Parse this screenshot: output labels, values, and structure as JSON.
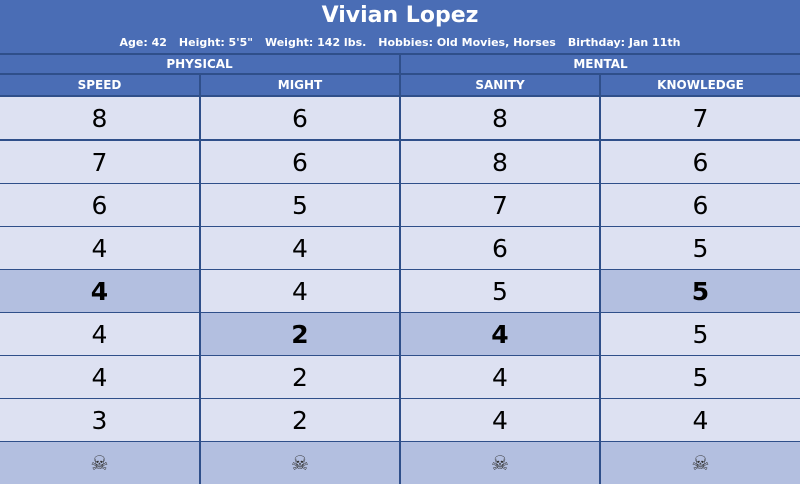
{
  "character": {
    "name": "Vivian Lopez",
    "age": "Age: 42",
    "height": "Height: 5'5\"",
    "weight": "Weight: 142 lbs.",
    "hobbies": "Hobbies: Old Movies, Horses",
    "birthday": "Birthday: Jan 11th"
  },
  "groups": [
    "PHYSICAL",
    "MENTAL"
  ],
  "columns": [
    "SPEED",
    "MIGHT",
    "SANITY",
    "KNOWLEDGE"
  ],
  "rows": [
    [
      "8",
      "6",
      "8",
      "7"
    ],
    [
      "7",
      "6",
      "8",
      "6"
    ],
    [
      "6",
      "5",
      "7",
      "6"
    ],
    [
      "4",
      "4",
      "6",
      "5"
    ],
    [
      "4",
      "4",
      "5",
      "5"
    ],
    [
      "4",
      "2",
      "4",
      "5"
    ],
    [
      "4",
      "2",
      "4",
      "5"
    ],
    [
      "3",
      "2",
      "4",
      "4"
    ]
  ],
  "starting_values": {
    "speed": {
      "row": 5,
      "value": "4"
    },
    "might": {
      "row": 6,
      "value": "2"
    },
    "sanity": {
      "row": 6,
      "value": "4"
    },
    "knowledge": {
      "row": 5,
      "value": "5"
    }
  },
  "death_icon": "skull-icon",
  "colors": {
    "header": "#4a6db5",
    "border": "#2f4f8a",
    "cell_light": "#dde1f2",
    "cell_highlight": "#b3bfe0"
  }
}
